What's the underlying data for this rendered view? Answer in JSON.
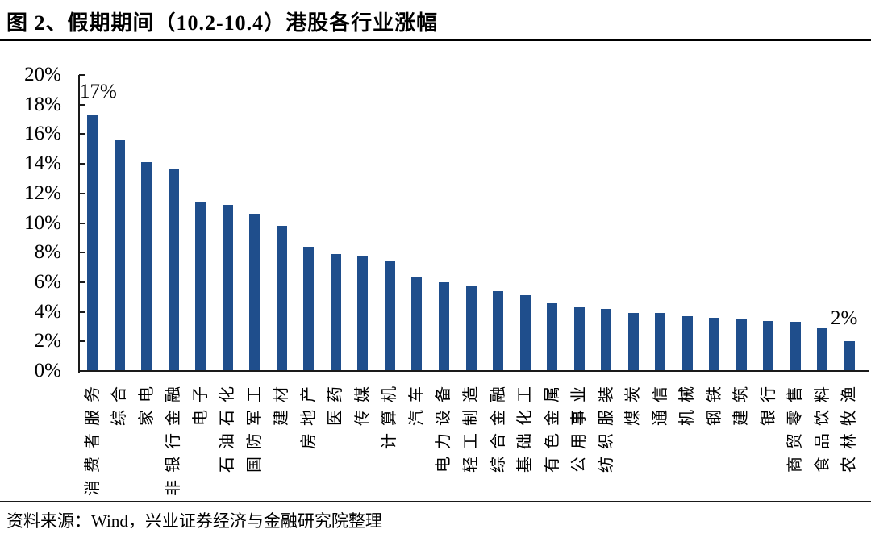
{
  "title": "图 2、假期期间（10.2-10.4）港股各行业涨幅",
  "source": "资料来源：Wind，兴业证券经济与金融研究院整理",
  "chart_data": {
    "type": "bar",
    "title": "假期期间（10.2-10.4）港股各行业涨幅",
    "categories": [
      "消费者服务",
      "综合",
      "家电",
      "非银行金融",
      "电子",
      "石油石化",
      "国防军工",
      "建材",
      "房地产",
      "医药",
      "传媒",
      "计算机",
      "汽车",
      "电力设备",
      "轻工制造",
      "综合金融",
      "基础化工",
      "有色金属",
      "公用事业",
      "纺织服装",
      "煤炭",
      "通信",
      "机械",
      "钢铁",
      "建筑",
      "银行",
      "商贸零售",
      "食品饮料",
      "农林牧渔"
    ],
    "values": [
      17.3,
      15.6,
      14.1,
      13.7,
      11.4,
      11.2,
      10.6,
      9.8,
      8.4,
      7.9,
      7.8,
      7.4,
      6.3,
      6.0,
      5.7,
      5.4,
      5.1,
      4.6,
      4.3,
      4.2,
      3.9,
      3.9,
      3.7,
      3.6,
      3.5,
      3.4,
      3.3,
      2.9,
      2.0
    ],
    "unit": "%",
    "xlabel": "",
    "ylabel": "",
    "ylim": [
      0,
      20
    ],
    "ytick_step": 2,
    "ytick_labels": [
      "0%",
      "2%",
      "4%",
      "6%",
      "8%",
      "10%",
      "12%",
      "14%",
      "16%",
      "18%",
      "20%"
    ],
    "grid": false,
    "legend": null,
    "bar_color": "#1F4E8C",
    "annotations": [
      {
        "text": "17%",
        "bar_index": 0
      },
      {
        "text": "2%",
        "bar_index": 28
      }
    ]
  }
}
